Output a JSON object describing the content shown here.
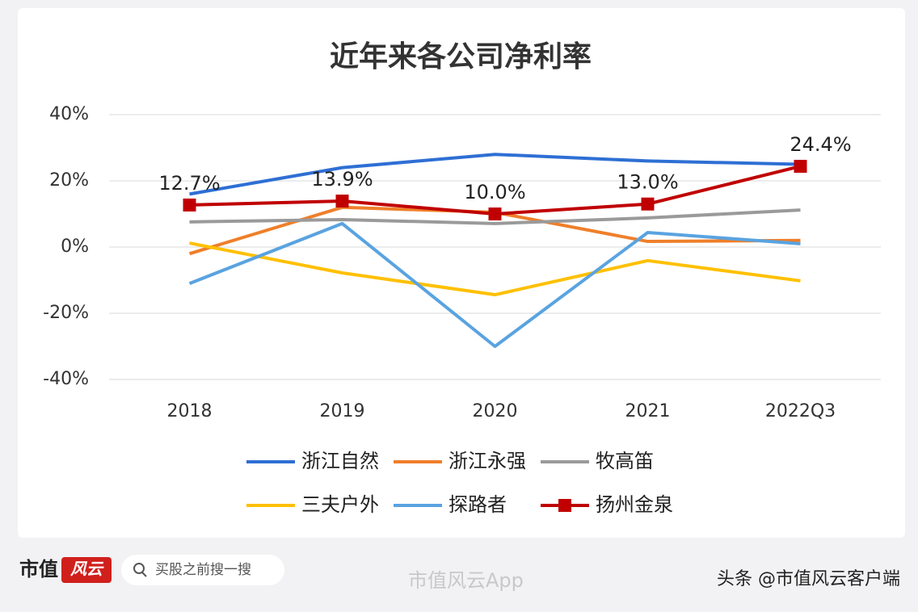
{
  "chart_data": {
    "type": "line",
    "title": "近年来各公司净利率",
    "categories": [
      "2018",
      "2019",
      "2020",
      "2021",
      "2022Q3"
    ],
    "ylim": [
      -40,
      40
    ],
    "yticks": [
      {
        "value": -40,
        "label": "-40%"
      },
      {
        "value": -20,
        "label": "-20%"
      },
      {
        "value": 0,
        "label": "0%"
      },
      {
        "value": 20,
        "label": "20%"
      },
      {
        "value": 40,
        "label": "40%"
      }
    ],
    "grid": true,
    "legend": "bottom",
    "series": [
      {
        "name": "浙江自然",
        "color": "#2e6fd4",
        "values": [
          16,
          24,
          28,
          26,
          25
        ]
      },
      {
        "name": "浙江永强",
        "color": "#ef7f2a",
        "values": [
          -2,
          12,
          10.5,
          1.7,
          2
        ]
      },
      {
        "name": "牧高笛",
        "color": "#9a9a9a",
        "values": [
          7.6,
          8.3,
          7.1,
          8.8,
          11.2
        ]
      },
      {
        "name": "三夫户外",
        "color": "#ffc000",
        "values": [
          1.2,
          -7.8,
          -14.4,
          -4.1,
          -10.2
        ]
      },
      {
        "name": "探路者",
        "color": "#5aa3e0",
        "values": [
          -11,
          7.1,
          -30,
          4.4,
          1
        ]
      },
      {
        "name": "扬州金泉",
        "color": "#c00000",
        "marker": "square",
        "values": [
          12.7,
          13.9,
          10.0,
          13.0,
          24.4
        ],
        "value_labels": [
          "12.7%",
          "13.9%",
          "10.0%",
          "13.0%",
          "24.4%"
        ]
      }
    ]
  },
  "footer": {
    "logo_text": "市值",
    "logo_badge": "风云",
    "search": "买股之前搜一搜",
    "watermark": "市值风云App",
    "credit": "头条 @市值风云客户端"
  }
}
